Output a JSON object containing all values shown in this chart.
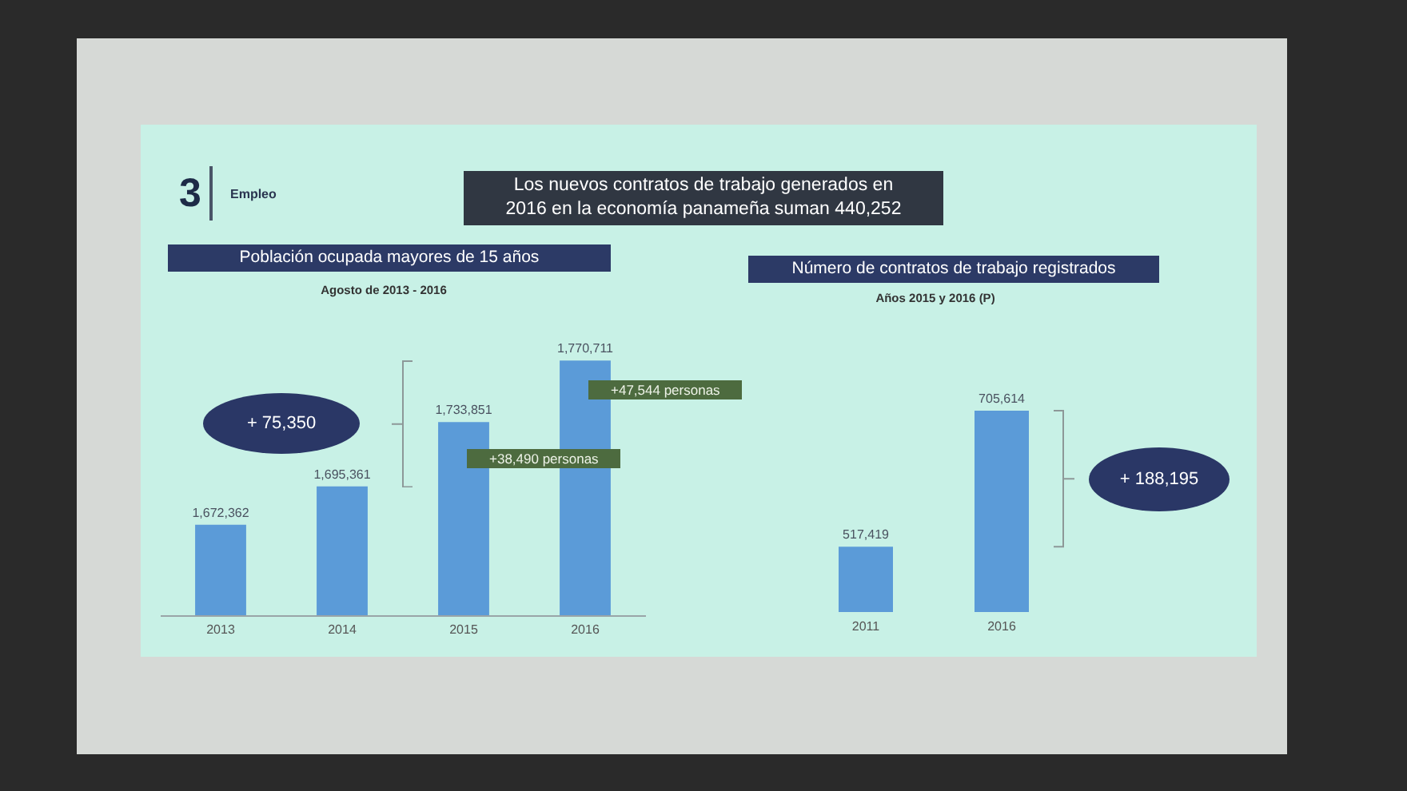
{
  "chart_data": [
    {
      "type": "other",
      "title": "Los nuevos contratos de trabajo generados en 2016 en la economía panameña suman 440,252",
      "annotations": [
        "3",
        "Empleo"
      ]
    },
    {
      "type": "bar",
      "title": "Población ocupada mayores de 15 años",
      "subtitle": "Agosto de 2013 - 2016",
      "categories": [
        "2013",
        "2014",
        "2015",
        "2016"
      ],
      "values": [
        1672362,
        1695361,
        1733851,
        1770711
      ],
      "value_labels": [
        "1,672,362",
        "1,695,361",
        "1,733,851",
        "1,770,711"
      ],
      "color": "#5b9bd8",
      "tick_labels": "x",
      "annotations": [
        "+ 75,350",
        "+38,490 personas",
        "+47,544 personas"
      ]
    },
    {
      "type": "bar",
      "title": "Número de contratos de trabajo registrados",
      "subtitle": "Años 2015 y 2016 (P)",
      "categories": [
        "2011",
        "2016"
      ],
      "values": [
        517419,
        705614
      ],
      "value_labels": [
        "517,419",
        "705,614"
      ],
      "color": "#5b9bd8",
      "tick_labels": "x",
      "annotations": [
        "+ 188,195"
      ]
    }
  ]
}
